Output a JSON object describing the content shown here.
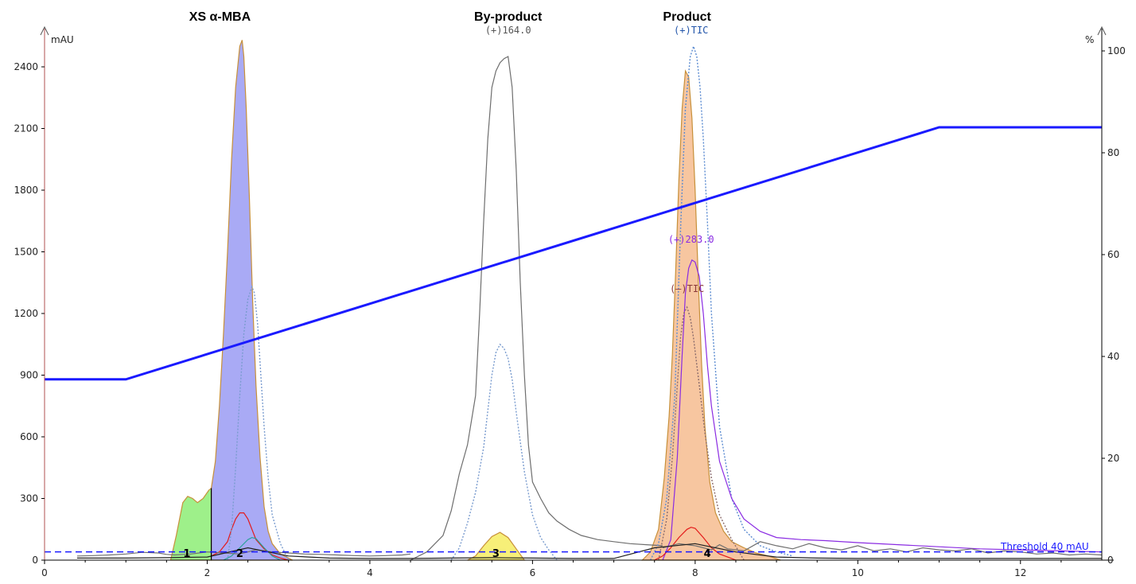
{
  "chart_data": {
    "type": "line",
    "headers": [
      {
        "text": "XS α-MBA",
        "x": 2.0
      },
      {
        "text": "By-product",
        "x": 5.7
      },
      {
        "text": "Product",
        "x": 7.9
      }
    ],
    "y_left_label": "mAU",
    "y_right_label": "%",
    "xlim": [
      0,
      13
    ],
    "ylim_left": [
      0,
      2550
    ],
    "ylim_right": [
      0,
      105
    ],
    "x_ticks": [
      0,
      2,
      4,
      6,
      8,
      10,
      12
    ],
    "y_left_ticks": [
      0,
      300,
      600,
      900,
      1200,
      1500,
      1800,
      2100,
      2400
    ],
    "y_right_ticks": [
      0,
      20,
      40,
      60,
      80,
      100
    ],
    "gradient": {
      "name": "",
      "color": "#1a1aff",
      "axis": "right",
      "x": [
        0,
        1.0,
        11.0,
        13.0
      ],
      "y": [
        35.5,
        35.5,
        85.0,
        85.0
      ]
    },
    "threshold": {
      "label": "Threshold 40 mAU",
      "value": 40,
      "color": "#1a1aff"
    },
    "trace_labels": [
      {
        "text": "(+)164.0",
        "x": 5.7,
        "y": 2500,
        "color": "#555555"
      },
      {
        "text": "(+)TIC",
        "x": 7.95,
        "y": 2500,
        "color": "#2255aa"
      },
      {
        "text": "(+)283.0",
        "x": 7.95,
        "y": 1490,
        "color": "#8a2be2"
      },
      {
        "text": "(–)TIC",
        "x": 7.9,
        "y": 1250,
        "color": "#8b3a3a"
      }
    ],
    "peaks": [
      {
        "label": "1",
        "x_label": 1.75,
        "color": "#9ef08a"
      },
      {
        "label": "2",
        "x_label": 2.4,
        "color": "#a9aaf5"
      },
      {
        "label": "3",
        "x_label": 5.55,
        "color": "#f7ef78"
      },
      {
        "label": "4",
        "x_label": 8.15,
        "color": "#f7c6a0"
      }
    ],
    "series": [
      {
        "color": "#9ef08a",
        "kind": "fill",
        "x": [
          1.55,
          1.62,
          1.7,
          1.76,
          1.82,
          1.88,
          1.95,
          2.02,
          2.05
        ],
        "y": [
          0,
          120,
          280,
          310,
          300,
          280,
          300,
          340,
          350
        ]
      },
      {
        "color": "#a9aaf5",
        "kind": "fill",
        "x": [
          2.05,
          2.1,
          2.15,
          2.2,
          2.25,
          2.3,
          2.35,
          2.4,
          2.43,
          2.45,
          2.48,
          2.52,
          2.56,
          2.6,
          2.65,
          2.7,
          2.75,
          2.8,
          2.9,
          3.0,
          3.05
        ],
        "y": [
          350,
          480,
          750,
          1100,
          1500,
          1950,
          2300,
          2500,
          2530,
          2450,
          2200,
          1750,
          1250,
          850,
          500,
          260,
          140,
          80,
          30,
          10,
          0
        ]
      },
      {
        "color": "#f7ef78",
        "kind": "fill",
        "x": [
          5.2,
          5.3,
          5.4,
          5.5,
          5.6,
          5.7,
          5.8,
          5.9
        ],
        "y": [
          0,
          20,
          70,
          115,
          135,
          110,
          55,
          0
        ]
      },
      {
        "color": "#f7c6a0",
        "kind": "fill",
        "x": [
          7.35,
          7.45,
          7.55,
          7.62,
          7.68,
          7.72,
          7.76,
          7.8,
          7.84,
          7.88,
          7.92,
          7.96,
          8.0,
          8.04,
          8.08,
          8.12,
          8.18,
          8.25,
          8.35,
          8.45,
          8.6,
          8.75,
          8.9,
          9.05
        ],
        "y": [
          0,
          40,
          150,
          400,
          700,
          1000,
          1400,
          1850,
          2200,
          2380,
          2350,
          2150,
          1800,
          1350,
          950,
          650,
          380,
          230,
          140,
          90,
          60,
          35,
          20,
          0
        ]
      },
      {
        "color": "#6e6e6e",
        "kind": "line",
        "x": [
          4.5,
          4.7,
          4.9,
          5.0,
          5.1,
          5.2,
          5.3,
          5.35,
          5.4,
          5.45,
          5.5,
          5.55,
          5.6,
          5.65,
          5.7,
          5.75,
          5.8,
          5.85,
          5.9,
          5.95,
          6.0,
          6.1,
          6.2,
          6.3,
          6.45,
          6.6,
          6.8,
          7.0,
          7.2,
          7.4,
          7.6
        ],
        "y": [
          0,
          40,
          120,
          240,
          420,
          560,
          800,
          1200,
          1650,
          2050,
          2300,
          2380,
          2420,
          2440,
          2450,
          2300,
          1900,
          1350,
          900,
          560,
          380,
          300,
          230,
          190,
          150,
          120,
          100,
          90,
          80,
          75,
          70
        ]
      },
      {
        "color": "#7a9ccf",
        "kind": "dotted",
        "x": [
          5.0,
          5.1,
          5.2,
          5.3,
          5.4,
          5.5,
          5.55,
          5.6,
          5.65,
          5.7,
          5.75,
          5.8,
          5.9,
          6.0,
          6.1,
          6.2,
          6.3
        ],
        "y": [
          0,
          60,
          180,
          330,
          550,
          900,
          1010,
          1050,
          1030,
          980,
          880,
          720,
          430,
          220,
          110,
          50,
          0
        ]
      },
      {
        "color": "#5b8bd1",
        "kind": "dotted",
        "x": [
          7.45,
          7.55,
          7.65,
          7.75,
          7.82,
          7.88,
          7.94,
          7.98,
          8.02,
          8.06,
          8.1,
          8.15,
          8.2,
          8.3,
          8.45,
          8.6,
          8.8,
          9.0,
          9.2
        ],
        "y": [
          0,
          80,
          300,
          800,
          1600,
          2200,
          2450,
          2500,
          2450,
          2300,
          2050,
          1650,
          1200,
          650,
          300,
          150,
          70,
          40,
          20
        ]
      },
      {
        "color": "#8a2be2",
        "kind": "line",
        "x": [
          7.6,
          7.7,
          7.78,
          7.84,
          7.88,
          7.92,
          7.96,
          8.0,
          8.05,
          8.1,
          8.15,
          8.2,
          8.3,
          8.45,
          8.6,
          8.8,
          9.0,
          9.3,
          9.6,
          10.0,
          10.5,
          11.0,
          11.5,
          12.0,
          12.5,
          13.0
        ],
        "y": [
          0,
          100,
          500,
          1000,
          1300,
          1420,
          1460,
          1450,
          1380,
          1200,
          950,
          750,
          480,
          300,
          200,
          140,
          110,
          100,
          95,
          85,
          75,
          65,
          55,
          50,
          45,
          40
        ]
      },
      {
        "color": "#8b6b6b",
        "kind": "dotted",
        "x": [
          7.55,
          7.65,
          7.72,
          7.78,
          7.82,
          7.86,
          7.9,
          7.94,
          7.98,
          8.02,
          8.06,
          8.12,
          8.2,
          8.3,
          8.45,
          8.6
        ],
        "y": [
          0,
          200,
          500,
          850,
          1080,
          1200,
          1230,
          1180,
          1080,
          950,
          820,
          620,
          400,
          220,
          100,
          0
        ]
      },
      {
        "color": "#e31a1a",
        "kind": "line",
        "x": [
          2.05,
          2.15,
          2.25,
          2.3,
          2.35,
          2.4,
          2.45,
          2.5,
          2.55,
          2.6,
          2.7,
          2.8,
          2.9,
          3.0
        ],
        "y": [
          20,
          40,
          90,
          150,
          200,
          230,
          230,
          200,
          150,
          100,
          55,
          25,
          10,
          0
        ]
      },
      {
        "color": "#e31a1a",
        "kind": "line",
        "x": [
          7.5,
          7.6,
          7.7,
          7.8,
          7.9,
          7.95,
          8.0,
          8.1,
          8.2,
          8.3,
          8.4,
          8.5
        ],
        "y": [
          0,
          20,
          60,
          110,
          150,
          160,
          155,
          110,
          60,
          30,
          15,
          0
        ]
      },
      {
        "color": "#2aa198",
        "kind": "line",
        "x": [
          2.2,
          2.3,
          2.4,
          2.5,
          2.55,
          2.6,
          2.7,
          2.8,
          2.9
        ],
        "y": [
          0,
          20,
          60,
          100,
          110,
          105,
          60,
          20,
          0
        ]
      },
      {
        "color": "#7a9ccf",
        "kind": "dotted",
        "x": [
          2.25,
          2.3,
          2.35,
          2.4,
          2.45,
          2.5,
          2.55,
          2.58,
          2.62,
          2.66,
          2.7,
          2.75,
          2.8,
          2.9,
          3.0
        ],
        "y": [
          0,
          150,
          450,
          800,
          1100,
          1270,
          1330,
          1300,
          1150,
          900,
          650,
          400,
          220,
          80,
          0
        ]
      },
      {
        "color": "#6e6e6e",
        "kind": "line",
        "x": [
          0.4,
          0.6,
          0.8,
          1.0,
          1.2,
          1.4,
          1.5,
          1.6,
          1.8,
          2.0,
          2.2,
          2.4,
          2.6,
          2.8,
          3.0,
          3.2,
          3.4,
          3.6,
          3.8,
          4.0,
          4.2,
          4.4,
          4.5
        ],
        "y": [
          20,
          22,
          25,
          30,
          38,
          35,
          28,
          25,
          30,
          40,
          35,
          30,
          50,
          40,
          35,
          30,
          28,
          25,
          22,
          20,
          22,
          25,
          30
        ]
      },
      {
        "color": "#6e6e6e",
        "kind": "line",
        "x": [
          7.6,
          7.8,
          8.0,
          8.2,
          8.3,
          8.4,
          8.6,
          8.8,
          9.0,
          9.2,
          9.4,
          9.6,
          9.8,
          10.0,
          10.2,
          10.4,
          10.6,
          10.8,
          11.0,
          11.2,
          11.4,
          11.6,
          11.8,
          12.0,
          12.2,
          12.4,
          12.6,
          12.8,
          13.0
        ],
        "y": [
          60,
          80,
          70,
          50,
          75,
          55,
          45,
          90,
          70,
          55,
          80,
          60,
          50,
          70,
          45,
          55,
          40,
          60,
          50,
          45,
          55,
          35,
          45,
          40,
          30,
          35,
          25,
          30,
          25
        ]
      },
      {
        "color": "#222222",
        "kind": "line",
        "x": [
          0.4,
          1.0,
          1.5,
          2.0,
          2.5,
          3.0,
          3.5,
          4.0,
          4.5,
          5.0,
          5.5,
          6.0,
          6.5,
          7.0,
          7.5,
          8.0,
          8.5,
          9.0,
          9.5,
          10.0,
          11.0,
          12.0,
          13.0
        ],
        "y": [
          10,
          10,
          12,
          15,
          60,
          20,
          10,
          8,
          8,
          10,
          12,
          10,
          8,
          8,
          60,
          80,
          40,
          15,
          10,
          8,
          8,
          8,
          8
        ]
      }
    ]
  }
}
